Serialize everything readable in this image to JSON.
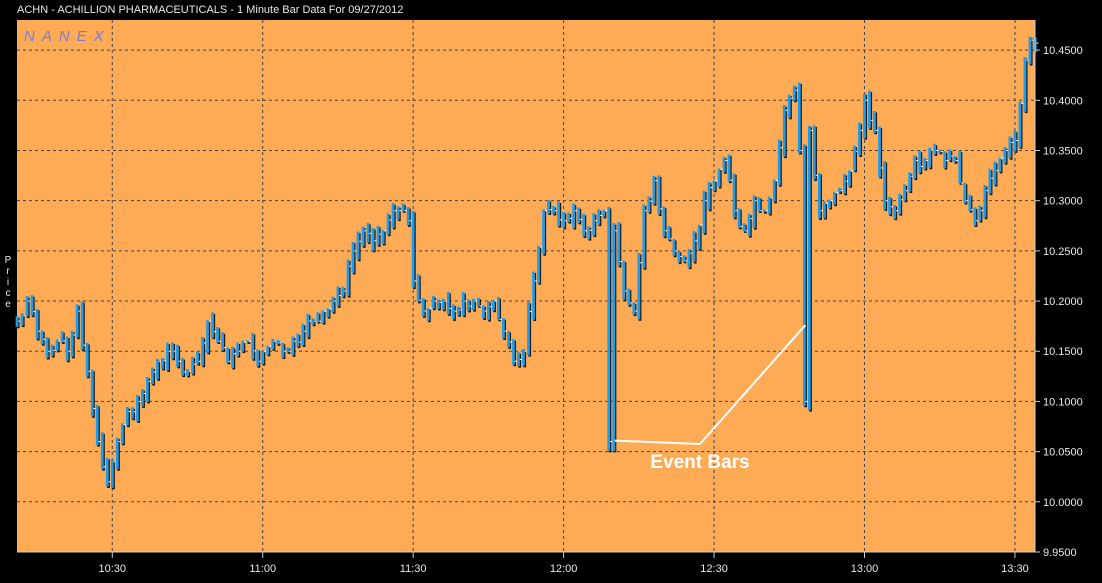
{
  "window": {
    "title": "ACHN - ACHILLION PHARMACEUTICALS - 1 Minute Bar Data For 09/27/2012"
  },
  "watermark": "NANEX",
  "colors": {
    "plot_bg": "#FFAA55",
    "bar": "#1E9BEA",
    "bar_shadow": "#1A1A1A",
    "tick_mark": "#FFFFFF",
    "grid": "#444444",
    "annotation": "#FFFFFF"
  },
  "chart_data": {
    "type": "bar",
    "subtype": "ohlc-1min",
    "title": "ACHN - ACHILLION PHARMACEUTICALS - 1 Minute Bar Data For 09/27/2012",
    "xlabel": "",
    "ylabel": "Price",
    "xlim": [
      "10:11",
      "13:34"
    ],
    "ylim": [
      9.95,
      10.48
    ],
    "grid": true,
    "y_axis_side": "right",
    "x_ticks": [
      "10:30",
      "11:00",
      "11:30",
      "12:00",
      "12:30",
      "13:00",
      "13:30"
    ],
    "y_ticks": [
      "9.9500",
      "10.0000",
      "10.0500",
      "10.1000",
      "10.1500",
      "10.2000",
      "10.2500",
      "10.3000",
      "10.3500",
      "10.4000",
      "10.4500"
    ],
    "series_guide": {
      "description": "Approximate close path at ~1 minute resolution (time, price)",
      "points": [
        [
          "10:11",
          10.18
        ],
        [
          "10:13",
          10.2
        ],
        [
          "10:15",
          10.17
        ],
        [
          "10:17",
          10.15
        ],
        [
          "10:19",
          10.16
        ],
        [
          "10:21",
          10.15
        ],
        [
          "10:23",
          10.19
        ],
        [
          "10:25",
          10.13
        ],
        [
          "10:27",
          10.06
        ],
        [
          "10:29",
          10.02
        ],
        [
          "10:30",
          10.04
        ],
        [
          "10:31",
          10.06
        ],
        [
          "10:33",
          10.09
        ],
        [
          "10:35",
          10.1
        ],
        [
          "10:37",
          10.12
        ],
        [
          "10:39",
          10.14
        ],
        [
          "10:41",
          10.15
        ],
        [
          "10:43",
          10.14
        ],
        [
          "10:45",
          10.13
        ],
        [
          "10:47",
          10.14
        ],
        [
          "10:49",
          10.18
        ],
        [
          "10:51",
          10.16
        ],
        [
          "10:53",
          10.14
        ],
        [
          "10:55",
          10.15
        ],
        [
          "10:57",
          10.16
        ],
        [
          "10:59",
          10.14
        ],
        [
          "11:00",
          10.15
        ],
        [
          "11:02",
          10.16
        ],
        [
          "11:04",
          10.15
        ],
        [
          "11:06",
          10.16
        ],
        [
          "11:08",
          10.17
        ],
        [
          "11:10",
          10.18
        ],
        [
          "11:12",
          10.19
        ],
        [
          "11:14",
          10.2
        ],
        [
          "11:16",
          10.21
        ],
        [
          "11:18",
          10.25
        ],
        [
          "11:20",
          10.27
        ],
        [
          "11:22",
          10.26
        ],
        [
          "11:24",
          10.27
        ],
        [
          "11:26",
          10.29
        ],
        [
          "11:28",
          10.29
        ],
        [
          "11:29",
          10.28
        ],
        [
          "11:30",
          10.22
        ],
        [
          "11:32",
          10.19
        ],
        [
          "11:34",
          10.2
        ],
        [
          "11:36",
          10.2
        ],
        [
          "11:38",
          10.19
        ],
        [
          "11:40",
          10.2
        ],
        [
          "11:42",
          10.2
        ],
        [
          "11:44",
          10.19
        ],
        [
          "11:46",
          10.2
        ],
        [
          "11:48",
          10.17
        ],
        [
          "11:50",
          10.14
        ],
        [
          "11:52",
          10.15
        ],
        [
          "11:54",
          10.22
        ],
        [
          "11:56",
          10.29
        ],
        [
          "11:58",
          10.29
        ],
        [
          "12:00",
          10.28
        ],
        [
          "12:02",
          10.29
        ],
        [
          "12:04",
          10.27
        ],
        [
          "12:06",
          10.28
        ],
        [
          "12:08",
          10.29
        ],
        [
          "12:09",
          10.06
        ],
        [
          "12:10",
          10.27
        ],
        [
          "12:12",
          10.21
        ],
        [
          "12:14",
          10.19
        ],
        [
          "12:16",
          10.29
        ],
        [
          "12:18",
          10.32
        ],
        [
          "12:20",
          10.27
        ],
        [
          "12:22",
          10.25
        ],
        [
          "12:24",
          10.24
        ],
        [
          "12:26",
          10.26
        ],
        [
          "12:28",
          10.3
        ],
        [
          "12:30",
          10.32
        ],
        [
          "12:32",
          10.34
        ],
        [
          "12:34",
          10.29
        ],
        [
          "12:36",
          10.27
        ],
        [
          "12:38",
          10.3
        ],
        [
          "12:40",
          10.29
        ],
        [
          "12:42",
          10.32
        ],
        [
          "12:44",
          10.39
        ],
        [
          "12:46",
          10.41
        ],
        [
          "12:47",
          10.35
        ],
        [
          "12:48",
          10.1
        ],
        [
          "12:49",
          10.37
        ],
        [
          "12:51",
          10.29
        ],
        [
          "12:53",
          10.3
        ],
        [
          "12:55",
          10.31
        ],
        [
          "12:57",
          10.33
        ],
        [
          "12:59",
          10.37
        ],
        [
          "13:00",
          10.4
        ],
        [
          "13:02",
          10.37
        ],
        [
          "13:04",
          10.3
        ],
        [
          "13:06",
          10.29
        ],
        [
          "13:08",
          10.31
        ],
        [
          "13:10",
          10.34
        ],
        [
          "13:12",
          10.34
        ],
        [
          "13:14",
          10.35
        ],
        [
          "13:16",
          10.34
        ],
        [
          "13:18",
          10.34
        ],
        [
          "13:20",
          10.3
        ],
        [
          "13:22",
          10.28
        ],
        [
          "13:24",
          10.31
        ],
        [
          "13:26",
          10.33
        ],
        [
          "13:28",
          10.35
        ],
        [
          "13:30",
          10.36
        ],
        [
          "13:32",
          10.44
        ],
        [
          "13:33",
          10.46
        ]
      ]
    },
    "annotations": [
      {
        "text": "Event Bars",
        "points_to": [
          [
            "12:09",
            10.055
          ],
          [
            "12:47",
            10.17
          ]
        ]
      }
    ]
  }
}
